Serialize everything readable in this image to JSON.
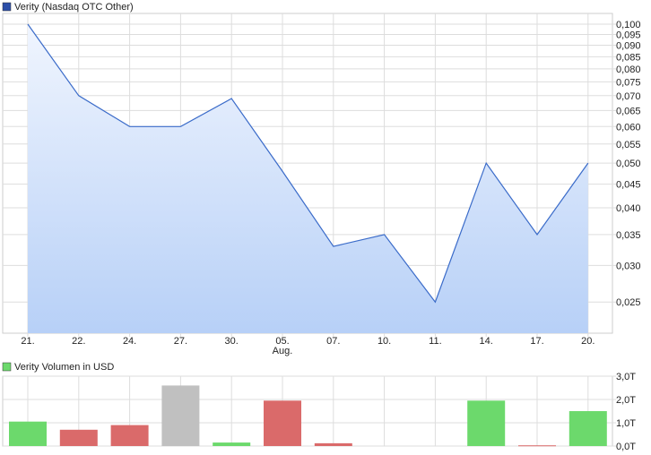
{
  "chart_data": [
    {
      "type": "area",
      "legend": "Verity (Nasdaq OTC Other)",
      "categories": [
        "21.",
        "22.",
        "24.",
        "27.",
        "30.",
        "05.",
        "07.",
        "10.",
        "11.",
        "14.",
        "17.",
        "20."
      ],
      "category_sublabels": {
        "05.": "Aug."
      },
      "values": [
        0.1,
        0.07,
        0.06,
        0.06,
        0.069,
        0.048,
        0.033,
        0.035,
        0.025,
        0.05,
        0.035,
        0.05
      ],
      "yscale": "log",
      "ylim": [
        0.0214,
        0.1055
      ],
      "yticks": [
        0.1,
        0.095,
        0.09,
        0.085,
        0.08,
        0.075,
        0.07,
        0.065,
        0.06,
        0.055,
        0.05,
        0.045,
        0.04,
        0.035,
        0.03,
        0.025
      ],
      "ytick_labels": [
        "0,100",
        "0,095",
        "0,090",
        "0,085",
        "0,080",
        "0,075",
        "0,070",
        "0,065",
        "0,060",
        "0,055",
        "0,050",
        "0,045",
        "0,040",
        "0,035",
        "0,030",
        "0,025"
      ],
      "grid": true,
      "legend_position": "top-left",
      "colors": {
        "line": "#3a6bc9",
        "fill_top": "#f0f5fe",
        "fill_bottom": "#b7d0f7",
        "legend": "#2c4fa8"
      }
    },
    {
      "type": "bar",
      "legend": "Verity Volumen in USD",
      "categories": [
        "21.",
        "22.",
        "24.",
        "27.",
        "30.",
        "05.",
        "07.",
        "10.",
        "11.",
        "14.",
        "17.",
        "20."
      ],
      "values": [
        1.05,
        0.7,
        0.9,
        2.6,
        0.15,
        1.95,
        0.12,
        0,
        0,
        1.95,
        0.03,
        1.5
      ],
      "bar_colors": [
        "green",
        "red",
        "red",
        "gray",
        "green",
        "red",
        "red",
        "none",
        "none",
        "green",
        "red",
        "green"
      ],
      "ylim": [
        0,
        3
      ],
      "yticks": [
        0,
        1,
        2,
        3
      ],
      "ytick_labels": [
        "0,0T",
        "1,0T",
        "2,0T",
        "3,0T"
      ],
      "grid": true,
      "legend_position": "top-left",
      "colors": {
        "green": "#6cd96c",
        "red": "#da6a6a",
        "gray": "#c0c0c0",
        "legend": "#6cd96c"
      }
    }
  ]
}
